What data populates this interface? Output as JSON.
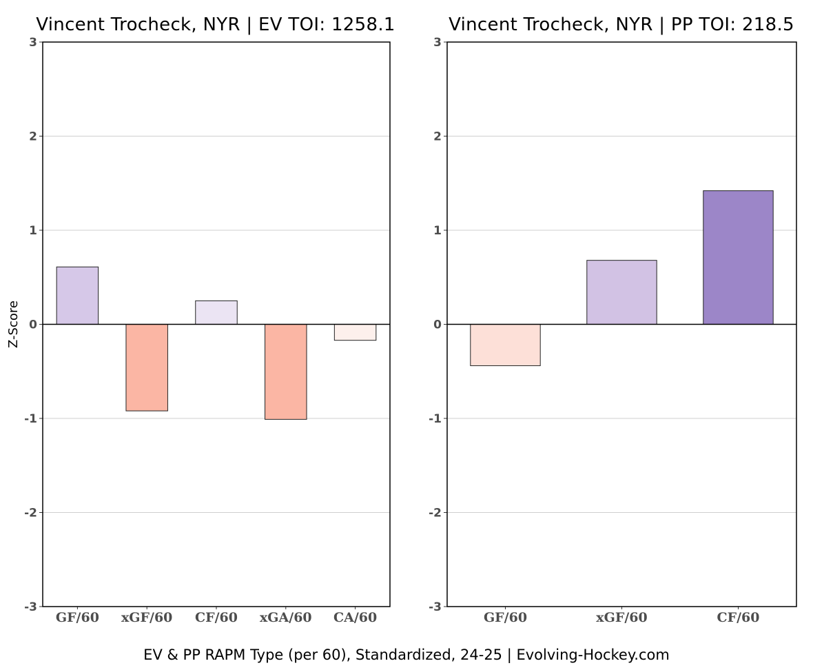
{
  "chart_data": [
    {
      "type": "bar",
      "title": "Vincent Trocheck, NYR  |  EV TOI: 1258.1",
      "ylabel": "Z-Score",
      "xlabel": "",
      "ylim": [
        -3,
        3
      ],
      "yticks": [
        "3",
        "2",
        "1",
        "0",
        "-1",
        "-2",
        "-3"
      ],
      "grid": true,
      "categories": [
        "GF/60",
        "xGF/60",
        "CF/60",
        "xGA/60",
        "CA/60"
      ],
      "values": [
        0.61,
        -0.92,
        0.25,
        -1.01,
        -0.17
      ],
      "colors": [
        "#d6c8e8",
        "#fbb6a4",
        "#ebe4f3",
        "#fbb6a4",
        "#fdf0ec"
      ]
    },
    {
      "type": "bar",
      "title": "Vincent Trocheck, NYR  |  PP TOI: 218.5",
      "ylabel": "",
      "xlabel": "",
      "ylim": [
        -3,
        3
      ],
      "yticks": [
        "3",
        "2",
        "1",
        "0",
        "-1",
        "-2",
        "-3"
      ],
      "grid": true,
      "categories": [
        "GF/60",
        "xGF/60",
        "CF/60"
      ],
      "values": [
        -0.44,
        0.68,
        1.42
      ],
      "colors": [
        "#fde0d8",
        "#d2c2e4",
        "#9c86c8"
      ]
    }
  ],
  "caption": "EV & PP RAPM Type (per 60), Standardized, 24-25    |    Evolving-Hockey.com"
}
